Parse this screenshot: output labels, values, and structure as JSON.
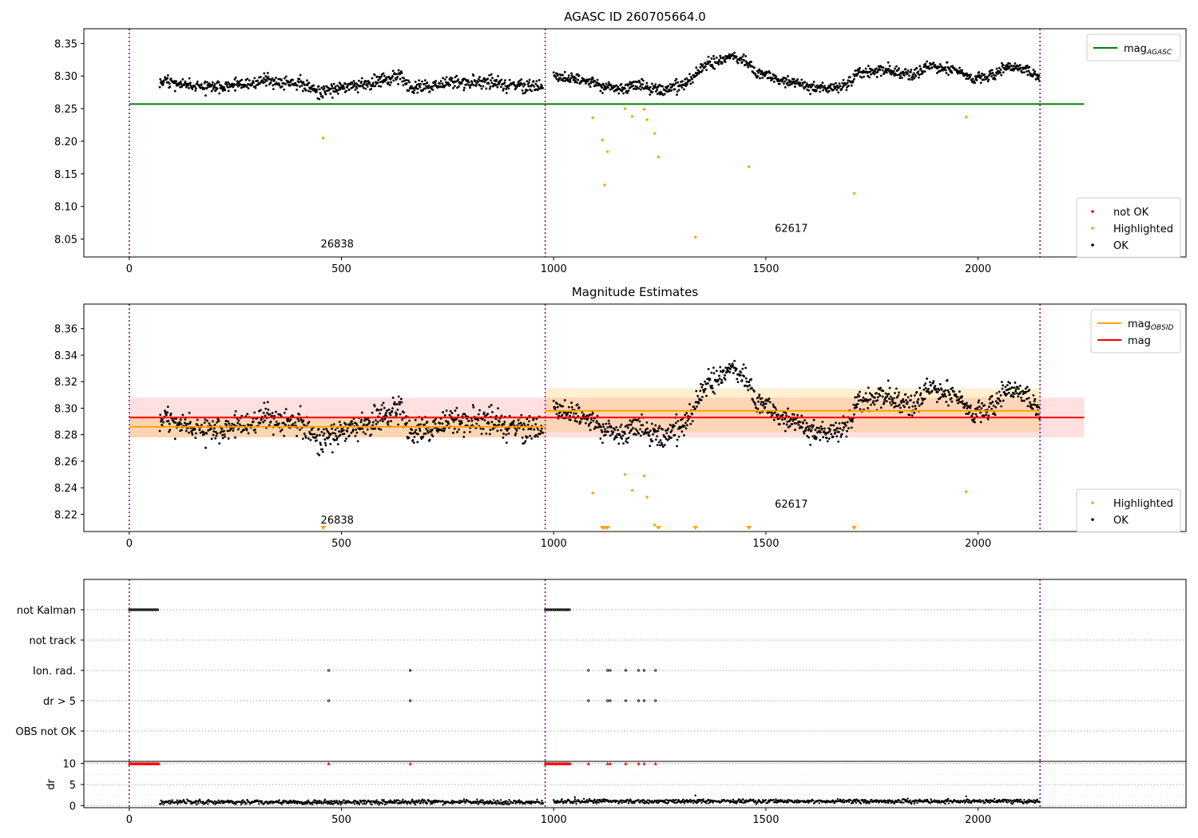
{
  "figure_title": "AGASC ID 260705664.0",
  "chart_data": [
    {
      "type": "scatter",
      "title": "AGASC ID 260705664.0",
      "xlabel": "",
      "ylabel": "",
      "xlim": [
        -107,
        2490
      ],
      "ylim": [
        8.0225,
        8.3725
      ],
      "xticks": [
        0,
        500,
        1000,
        1500,
        2000
      ],
      "yticks": [
        8.05,
        8.1,
        8.15,
        8.2,
        8.25,
        8.3,
        8.35
      ],
      "grid": false,
      "obs_boundaries": [
        0,
        980,
        2146
      ],
      "obsid_labels": [
        {
          "text": "26838",
          "x": 490,
          "y": 8.037
        },
        {
          "text": "62617",
          "x": 1560,
          "y": 8.061
        }
      ],
      "lines": [
        {
          "name": "mag_AGASC",
          "color": "#008000",
          "y": 8.257,
          "x": [
            0,
            2250
          ]
        }
      ],
      "series": [
        {
          "name": "OK",
          "color": "#000000",
          "segments": [
            {
              "x": [
                72,
                975
              ],
              "base": 8.287,
              "anchors": [
                [
                  72,
                  8.293
                ],
                [
                  140,
                  8.285
                ],
                [
                  220,
                  8.283
                ],
                [
                  330,
                  8.293
                ],
                [
                  400,
                  8.29
                ],
                [
                  450,
                  8.275
                ],
                [
                  500,
                  8.284
                ],
                [
                  560,
                  8.287
                ],
                [
                  620,
                  8.298
                ],
                [
                  640,
                  8.3
                ],
                [
                  660,
                  8.281
                ],
                [
                  760,
                  8.29
                ],
                [
                  840,
                  8.291
                ],
                [
                  905,
                  8.286
                ],
                [
                  975,
                  8.283
                ]
              ],
              "amp": 0.009
            },
            {
              "x": [
                1000,
                2146
              ],
              "base": 8.29,
              "anchors": [
                [
                  1000,
                  8.302
                ],
                [
                  1080,
                  8.292
                ],
                [
                  1150,
                  8.279
                ],
                [
                  1200,
                  8.285
                ],
                [
                  1260,
                  8.276
                ],
                [
                  1300,
                  8.288
                ],
                [
                  1330,
                  8.298
                ],
                [
                  1360,
                  8.318
                ],
                [
                  1390,
                  8.322
                ],
                [
                  1420,
                  8.331
                ],
                [
                  1450,
                  8.323
                ],
                [
                  1480,
                  8.305
                ],
                [
                  1540,
                  8.293
                ],
                [
                  1600,
                  8.285
                ],
                [
                  1670,
                  8.281
                ],
                [
                  1690,
                  8.286
                ],
                [
                  1720,
                  8.305
                ],
                [
                  1790,
                  8.309
                ],
                [
                  1850,
                  8.3
                ],
                [
                  1880,
                  8.315
                ],
                [
                  1950,
                  8.309
                ],
                [
                  1990,
                  8.295
                ],
                [
                  2040,
                  8.304
                ],
                [
                  2090,
                  8.315
                ],
                [
                  2146,
                  8.296
                ]
              ],
              "amp": 0.008
            }
          ]
        },
        {
          "name": "Highlighted",
          "color": "#ffa500",
          "points": [
            [
              457,
              8.205
            ],
            [
              1092,
              8.236
            ],
            [
              1115,
              8.202
            ],
            [
              1120,
              8.133
            ],
            [
              1127,
              8.184
            ],
            [
              1168,
              8.25
            ],
            [
              1185,
              8.238
            ],
            [
              1213,
              8.249
            ],
            [
              1220,
              8.233
            ],
            [
              1238,
              8.212
            ],
            [
              1247,
              8.176
            ],
            [
              1334,
              8.053
            ],
            [
              1460,
              8.161
            ],
            [
              1708,
              8.12
            ],
            [
              1972,
              8.237
            ]
          ]
        },
        {
          "name": "not OK",
          "color": "#ff0000",
          "points": []
        }
      ],
      "legends": [
        {
          "position": "upper right",
          "entries": [
            {
              "label": "mag",
              "sub": "AGASC",
              "kind": "line",
              "color": "#008000"
            }
          ]
        },
        {
          "position": "lower right",
          "entries": [
            {
              "label": "not OK",
              "kind": "dot",
              "color": "#ff0000"
            },
            {
              "label": "Highlighted",
              "kind": "dot",
              "color": "#ffa500"
            },
            {
              "label": "OK",
              "kind": "dot",
              "color": "#000000"
            }
          ]
        }
      ]
    },
    {
      "type": "scatter",
      "title": "Magnitude Estimates",
      "xlabel": "",
      "ylabel": "",
      "xlim": [
        -107,
        2490
      ],
      "ylim": [
        8.207,
        8.3785
      ],
      "xticks": [
        0,
        500,
        1000,
        1500,
        2000
      ],
      "yticks": [
        8.22,
        8.24,
        8.26,
        8.28,
        8.3,
        8.32,
        8.34,
        8.36
      ],
      "grid": false,
      "obs_boundaries": [
        0,
        980,
        2146
      ],
      "obsid_labels": [
        {
          "text": "26838",
          "x": 490,
          "y": 8.213
        },
        {
          "text": "62617",
          "x": 1560,
          "y": 8.225
        }
      ],
      "bands": [
        {
          "name": "mag band",
          "color": "#ff0000",
          "opacity": 0.12,
          "x": [
            0,
            2250
          ],
          "y": [
            8.278,
            8.308
          ]
        },
        {
          "name": "mag_OBSID band 26838",
          "color": "#ffa500",
          "opacity": 0.2,
          "x": [
            0,
            980
          ],
          "y": [
            8.278,
            8.294
          ]
        },
        {
          "name": "mag_OBSID band 62617",
          "color": "#ffa500",
          "opacity": 0.18,
          "x": [
            980,
            2146
          ],
          "y": [
            8.282,
            8.315
          ]
        }
      ],
      "lines": [
        {
          "name": "mag",
          "color": "#ff0000",
          "y": 8.293,
          "x": [
            0,
            2250
          ]
        },
        {
          "name": "mag_OBSID 26838",
          "color": "#ffa500",
          "y": 8.286,
          "x": [
            0,
            980
          ]
        },
        {
          "name": "mag_OBSID 62617",
          "color": "#ffa500",
          "y": 8.298,
          "x": [
            980,
            2146
          ]
        }
      ],
      "series": [
        {
          "name": "OK",
          "color": "#000000",
          "segments": [
            {
              "x": [
                72,
                975
              ],
              "base": 8.287,
              "anchors": [
                [
                  72,
                  8.293
                ],
                [
                  140,
                  8.285
                ],
                [
                  220,
                  8.283
                ],
                [
                  330,
                  8.293
                ],
                [
                  400,
                  8.29
                ],
                [
                  450,
                  8.275
                ],
                [
                  500,
                  8.284
                ],
                [
                  560,
                  8.287
                ],
                [
                  620,
                  8.298
                ],
                [
                  640,
                  8.3
                ],
                [
                  660,
                  8.281
                ],
                [
                  760,
                  8.29
                ],
                [
                  840,
                  8.291
                ],
                [
                  905,
                  8.286
                ],
                [
                  975,
                  8.283
                ]
              ],
              "amp": 0.009
            },
            {
              "x": [
                1000,
                2146
              ],
              "base": 8.29,
              "anchors": [
                [
                  1000,
                  8.302
                ],
                [
                  1080,
                  8.292
                ],
                [
                  1150,
                  8.279
                ],
                [
                  1200,
                  8.285
                ],
                [
                  1260,
                  8.276
                ],
                [
                  1300,
                  8.288
                ],
                [
                  1330,
                  8.298
                ],
                [
                  1360,
                  8.318
                ],
                [
                  1390,
                  8.322
                ],
                [
                  1420,
                  8.331
                ],
                [
                  1450,
                  8.323
                ],
                [
                  1480,
                  8.305
                ],
                [
                  1540,
                  8.293
                ],
                [
                  1600,
                  8.285
                ],
                [
                  1670,
                  8.281
                ],
                [
                  1690,
                  8.286
                ],
                [
                  1720,
                  8.305
                ],
                [
                  1790,
                  8.309
                ],
                [
                  1850,
                  8.3
                ],
                [
                  1880,
                  8.315
                ],
                [
                  1950,
                  8.309
                ],
                [
                  1990,
                  8.295
                ],
                [
                  2040,
                  8.304
                ],
                [
                  2090,
                  8.315
                ],
                [
                  2146,
                  8.296
                ]
              ],
              "amp": 0.008
            }
          ]
        },
        {
          "name": "Highlighted",
          "color": "#ffa500",
          "points": [
            [
              1092,
              8.236
            ],
            [
              1168,
              8.25
            ],
            [
              1185,
              8.238
            ],
            [
              1213,
              8.249
            ],
            [
              1220,
              8.233
            ],
            [
              1238,
              8.212
            ],
            [
              1972,
              8.237
            ]
          ]
        }
      ],
      "offscale_markers": {
        "color": "#ffa500",
        "x": [
          457,
          1115,
          1120,
          1127,
          1247,
          1334,
          1460,
          1708
        ]
      },
      "legends": [
        {
          "position": "upper right",
          "entries": [
            {
              "label": "mag",
              "sub": "OBSID",
              "kind": "line",
              "color": "#ffa500"
            },
            {
              "label": "mag",
              "kind": "line",
              "color": "#ff0000"
            }
          ]
        },
        {
          "position": "lower right",
          "entries": [
            {
              "label": "Highlighted",
              "kind": "dot",
              "color": "#ffa500"
            },
            {
              "label": "OK",
              "kind": "dot",
              "color": "#000000"
            }
          ]
        }
      ]
    },
    {
      "type": "scatter",
      "title": "",
      "xlabel": "",
      "ylabel": "",
      "xlim": [
        -107,
        2490
      ],
      "categories": [
        "not Kalman",
        "not track",
        "Ion. rad.",
        "dr > 5",
        "OBS not OK"
      ],
      "grid": true,
      "obs_boundaries": [
        0,
        980,
        2146
      ],
      "flags": [
        {
          "category": "not Kalman",
          "ranges": [
            [
              0,
              70
            ],
            [
              980,
              1040
            ]
          ]
        },
        {
          "category": "not track",
          "ranges": []
        },
        {
          "category": "Ion. rad.",
          "x": [
            470,
            662,
            1082,
            1127,
            1133,
            1170,
            1200,
            1213,
            1240
          ]
        },
        {
          "category": "dr > 5",
          "x": [
            470,
            662,
            1082,
            1127,
            1133,
            1170,
            1200,
            1213,
            1240
          ]
        },
        {
          "category": "OBS not OK",
          "x": []
        }
      ]
    },
    {
      "type": "scatter",
      "title": "",
      "xlabel": "",
      "ylabel": "dr",
      "xlim": [
        -107,
        2490
      ],
      "ylim": [
        -0.5,
        10.5
      ],
      "xticks": [
        0,
        500,
        1000,
        1500,
        2000
      ],
      "yticks": [
        0,
        5,
        10
      ],
      "grid": true,
      "obs_boundaries": [
        0,
        980,
        2146
      ],
      "series": [
        {
          "name": "dr",
          "color": "#000000",
          "segments": [
            {
              "x": [
                72,
                975
              ],
              "base": 0.8,
              "amp": 0.5
            },
            {
              "x": [
                1000,
                2146
              ],
              "base": 1.0,
              "amp": 0.5
            }
          ],
          "extra_points": [
            [
              1334,
              2.4
            ],
            [
              1972,
              2.2
            ],
            [
              1050,
              2.0
            ]
          ]
        },
        {
          "name": "clipped",
          "color": "#ff0000",
          "y": 10,
          "ranges": [
            [
              0,
              70
            ],
            [
              980,
              1040
            ]
          ],
          "x": [
            470,
            662,
            1082,
            1127,
            1133,
            1170,
            1200,
            1213,
            1240
          ]
        }
      ]
    }
  ]
}
